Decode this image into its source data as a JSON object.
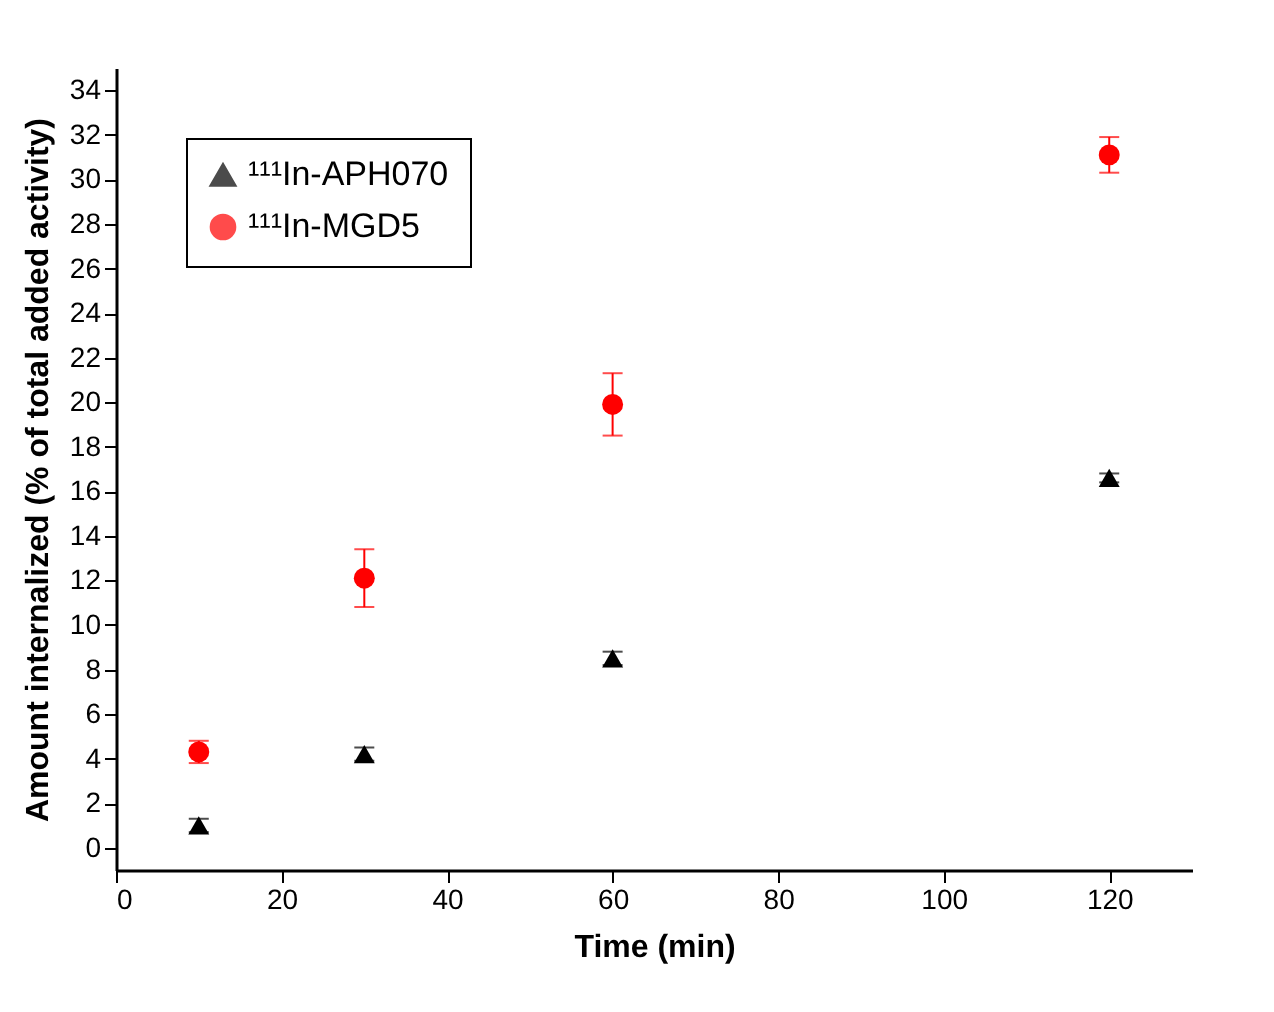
{
  "chart_data": {
    "type": "scatter",
    "xlabel": "Time (min)",
    "ylabel": "Amount internalized (% of total added activity)",
    "x": [
      10,
      30,
      60,
      120
    ],
    "series": [
      {
        "name": "¹¹¹In-APH070",
        "color": "#000000",
        "marker": "triangle",
        "values": [
          1.0,
          4.2,
          8.5,
          16.6
        ],
        "errors": [
          0.3,
          0.3,
          0.3,
          0.2
        ]
      },
      {
        "name": "¹¹¹In-MGD5",
        "color": "#ff0000",
        "marker": "circle",
        "values": [
          4.3,
          12.1,
          19.9,
          31.1
        ],
        "errors": [
          0.5,
          1.3,
          1.4,
          0.8
        ]
      }
    ],
    "xlim": [
      0,
      130
    ],
    "xticks": [
      0,
      20,
      40,
      60,
      80,
      100,
      120
    ],
    "ylim": [
      -1,
      35
    ],
    "yticks": [
      0,
      2,
      4,
      6,
      8,
      10,
      12,
      14,
      16,
      18,
      20,
      22,
      24,
      26,
      28,
      30,
      32,
      34
    ],
    "grid": false,
    "legend": "top left"
  }
}
